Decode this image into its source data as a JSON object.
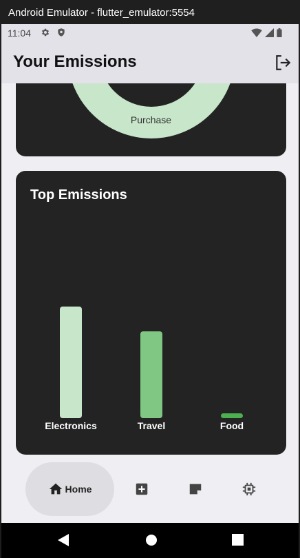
{
  "window": {
    "title": "Android Emulator - flutter_emulator:5554"
  },
  "status_bar": {
    "time": "11:04",
    "left_icons": [
      "settings-icon",
      "shield-icon"
    ],
    "right_icons": [
      "wifi-icon",
      "signal-icon",
      "battery-icon"
    ]
  },
  "app_bar": {
    "title": "Your Emissions",
    "action_icon": "logout-icon"
  },
  "donut_card": {
    "label": "Purchase",
    "color": "#c8e6c9"
  },
  "top_emissions": {
    "title": "Top Emissions",
    "chart_data": {
      "type": "bar",
      "categories": [
        "Electronics",
        "Travel",
        "Food"
      ],
      "values": [
        100,
        77.5,
        4.5
      ],
      "colors": [
        "#c8e6c9",
        "#81c784",
        "#4caf50"
      ],
      "xlabel": "",
      "ylabel": ""
    }
  },
  "bottom_nav": {
    "items": [
      {
        "label": "Home",
        "icon": "home-icon",
        "selected": true
      },
      {
        "label": "",
        "icon": "add-box-icon",
        "selected": false
      },
      {
        "label": "",
        "icon": "note-icon",
        "selected": false
      },
      {
        "label": "",
        "icon": "chip-icon",
        "selected": false
      }
    ]
  },
  "system_nav": {
    "buttons": [
      "back-icon",
      "home-circle-icon",
      "recents-icon"
    ]
  }
}
